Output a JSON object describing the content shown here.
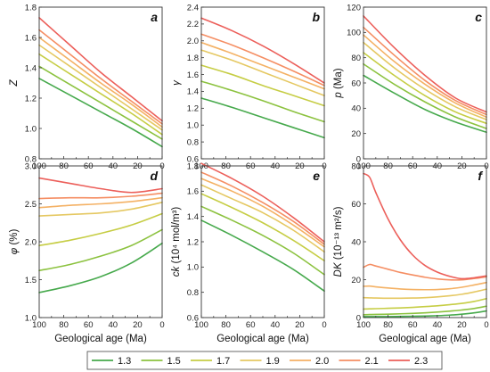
{
  "chart_data": [
    {
      "panel": "a",
      "type": "line",
      "ylabel_main": "Z",
      "ylabel_unit": "",
      "xlabel": "",
      "xlim": [
        100,
        0
      ],
      "ylim": [
        0.8,
        1.8
      ],
      "xticks": [
        "100",
        "80",
        "60",
        "40",
        "20",
        "0"
      ],
      "yticks": [
        "0.8",
        "1.0",
        "1.2",
        "1.4",
        "1.6",
        "1.8"
      ],
      "x": [
        100,
        75,
        50,
        25,
        0
      ],
      "series": [
        {
          "values": [
            1.33,
            1.22,
            1.11,
            1.0,
            0.88
          ]
        },
        {
          "values": [
            1.41,
            1.29,
            1.17,
            1.05,
            0.93
          ]
        },
        {
          "values": [
            1.49,
            1.36,
            1.23,
            1.1,
            0.96
          ]
        },
        {
          "values": [
            1.55,
            1.41,
            1.27,
            1.13,
            0.99
          ]
        },
        {
          "values": [
            1.6,
            1.45,
            1.3,
            1.16,
            1.01
          ]
        },
        {
          "values": [
            1.65,
            1.49,
            1.33,
            1.18,
            1.03
          ]
        },
        {
          "values": [
            1.73,
            1.55,
            1.37,
            1.21,
            1.05
          ]
        }
      ]
    },
    {
      "panel": "b",
      "type": "line",
      "ylabel_main": "γ",
      "ylabel_unit": "",
      "xlabel": "",
      "xlim": [
        100,
        0
      ],
      "ylim": [
        0.6,
        2.4
      ],
      "xticks": [
        "100",
        "80",
        "60",
        "40",
        "20",
        "0"
      ],
      "yticks": [
        "0.6",
        "0.8",
        "1.0",
        "1.2",
        "1.4",
        "1.6",
        "1.8",
        "2.0",
        "2.2",
        "2.4"
      ],
      "x": [
        100,
        75,
        50,
        25,
        0
      ],
      "series": [
        {
          "values": [
            1.32,
            1.21,
            1.09,
            0.97,
            0.85
          ]
        },
        {
          "values": [
            1.52,
            1.41,
            1.29,
            1.16,
            1.04
          ]
        },
        {
          "values": [
            1.71,
            1.6,
            1.47,
            1.35,
            1.23
          ]
        },
        {
          "values": [
            1.89,
            1.77,
            1.63,
            1.49,
            1.35
          ]
        },
        {
          "values": [
            1.98,
            1.85,
            1.71,
            1.57,
            1.43
          ]
        },
        {
          "values": [
            2.08,
            1.95,
            1.8,
            1.64,
            1.47
          ]
        },
        {
          "values": [
            2.27,
            2.12,
            1.94,
            1.73,
            1.5
          ]
        }
      ]
    },
    {
      "panel": "c",
      "type": "line",
      "ylabel_main": "p",
      "ylabel_unit": " (Ma)",
      "xlabel": "",
      "xlim": [
        100,
        0
      ],
      "ylim": [
        0,
        120
      ],
      "xticks": [
        "100",
        "80",
        "60",
        "40",
        "20",
        "0"
      ],
      "yticks": [
        "0",
        "20",
        "40",
        "60",
        "80",
        "100",
        "120"
      ],
      "x": [
        100,
        75,
        50,
        25,
        0
      ],
      "series": [
        {
          "values": [
            66,
            52,
            39,
            29,
            21
          ]
        },
        {
          "values": [
            75,
            59,
            45,
            33,
            24
          ]
        },
        {
          "values": [
            84,
            66,
            50,
            37,
            28
          ]
        },
        {
          "values": [
            92,
            72,
            55,
            41,
            31
          ]
        },
        {
          "values": [
            98,
            77,
            59,
            44,
            33
          ]
        },
        {
          "values": [
            104,
            82,
            62,
            46,
            35
          ]
        },
        {
          "values": [
            113,
            88,
            66,
            48,
            37
          ]
        }
      ]
    },
    {
      "panel": "d",
      "type": "line",
      "ylabel_main": "φ",
      "ylabel_unit": " (%)",
      "xlabel": "Geological age (Ma)",
      "xlim": [
        100,
        0
      ],
      "ylim": [
        1.0,
        3.0
      ],
      "xticks": [
        "100",
        "80",
        "60",
        "40",
        "20",
        "0"
      ],
      "yticks": [
        "1.0",
        "1.5",
        "2.0",
        "2.5",
        "3.0"
      ],
      "x": [
        100,
        75,
        50,
        25,
        0
      ],
      "series": [
        {
          "values": [
            1.33,
            1.42,
            1.54,
            1.72,
            1.98
          ]
        },
        {
          "values": [
            1.62,
            1.7,
            1.81,
            1.95,
            2.16
          ]
        },
        {
          "values": [
            1.95,
            2.02,
            2.11,
            2.22,
            2.37
          ]
        },
        {
          "values": [
            2.34,
            2.36,
            2.38,
            2.43,
            2.52
          ]
        },
        {
          "values": [
            2.45,
            2.48,
            2.5,
            2.53,
            2.58
          ]
        },
        {
          "values": [
            2.57,
            2.58,
            2.58,
            2.6,
            2.64
          ]
        },
        {
          "values": [
            2.84,
            2.77,
            2.7,
            2.65,
            2.7
          ]
        }
      ]
    },
    {
      "panel": "e",
      "type": "line",
      "ylabel_main": "ck",
      "ylabel_unit": " (10⁴ mol/m³)",
      "xlabel": "Geological age (Ma)",
      "xlim": [
        100,
        0
      ],
      "ylim": [
        0.6,
        1.8
      ],
      "xticks": [
        "100",
        "80",
        "60",
        "40",
        "20",
        "0"
      ],
      "yticks": [
        "0.6",
        "0.8",
        "1.0",
        "1.2",
        "1.4",
        "1.6",
        "1.8"
      ],
      "x": [
        100,
        75,
        50,
        25,
        0
      ],
      "series": [
        {
          "values": [
            1.37,
            1.25,
            1.12,
            0.98,
            0.81
          ]
        },
        {
          "values": [
            1.48,
            1.37,
            1.25,
            1.11,
            0.94
          ]
        },
        {
          "values": [
            1.58,
            1.47,
            1.35,
            1.21,
            1.05
          ]
        },
        {
          "values": [
            1.65,
            1.54,
            1.43,
            1.29,
            1.12
          ]
        },
        {
          "values": [
            1.7,
            1.6,
            1.48,
            1.33,
            1.16
          ]
        },
        {
          "values": [
            1.75,
            1.64,
            1.51,
            1.36,
            1.18
          ]
        },
        {
          "values": [
            1.82,
            1.7,
            1.56,
            1.39,
            1.2
          ]
        }
      ]
    },
    {
      "panel": "f",
      "type": "line",
      "ylabel_main": "DK",
      "ylabel_unit": " (10⁻¹³ m²/s)",
      "xlabel": "Geological age (Ma)",
      "xlim": [
        100,
        0
      ],
      "ylim": [
        0,
        80
      ],
      "xticks": [
        "100",
        "80",
        "60",
        "40",
        "20",
        "0"
      ],
      "yticks": [
        "0",
        "20",
        "40",
        "60",
        "80"
      ],
      "x": [
        100,
        95,
        90,
        80,
        70,
        60,
        50,
        40,
        30,
        20,
        10,
        0
      ],
      "series": [
        {
          "values": [
            0.5,
            0.5,
            0.5,
            0.5,
            0.6,
            0.7,
            0.8,
            1.0,
            1.3,
            1.8,
            2.5,
            3.5
          ]
        },
        {
          "values": [
            1.5,
            1.6,
            1.7,
            1.8,
            2.0,
            2.2,
            2.5,
            2.9,
            3.4,
            4.0,
            4.8,
            6.0
          ]
        },
        {
          "values": [
            4.5,
            4.6,
            4.7,
            4.9,
            5.1,
            5.4,
            5.8,
            6.2,
            6.8,
            7.5,
            8.5,
            10.0
          ]
        },
        {
          "values": [
            10.5,
            10.4,
            10.3,
            10.2,
            10.2,
            10.3,
            10.5,
            10.9,
            11.5,
            12.3,
            13.5,
            15.0
          ]
        },
        {
          "values": [
            16.5,
            16.6,
            16.2,
            15.6,
            15.1,
            14.8,
            14.7,
            14.8,
            15.2,
            16.0,
            17.2,
            18.5
          ]
        },
        {
          "values": [
            26.5,
            28.0,
            27.2,
            25.5,
            23.8,
            22.5,
            21.3,
            20.4,
            19.9,
            19.9,
            20.6,
            21.5
          ]
        },
        {
          "values": [
            76.0,
            74.0,
            66.0,
            52.0,
            41.0,
            33.0,
            27.5,
            24.0,
            21.8,
            20.5,
            21.0,
            22.0
          ]
        }
      ]
    }
  ],
  "legend": {
    "entries": [
      "1.3",
      "1.5",
      "1.7",
      "1.9",
      "2.0",
      "2.1",
      "2.3"
    ],
    "colors": [
      "#46a94c",
      "#8cc23f",
      "#c6cd44",
      "#e5c862",
      "#f4b164",
      "#f58e63",
      "#ec5f5a"
    ]
  }
}
